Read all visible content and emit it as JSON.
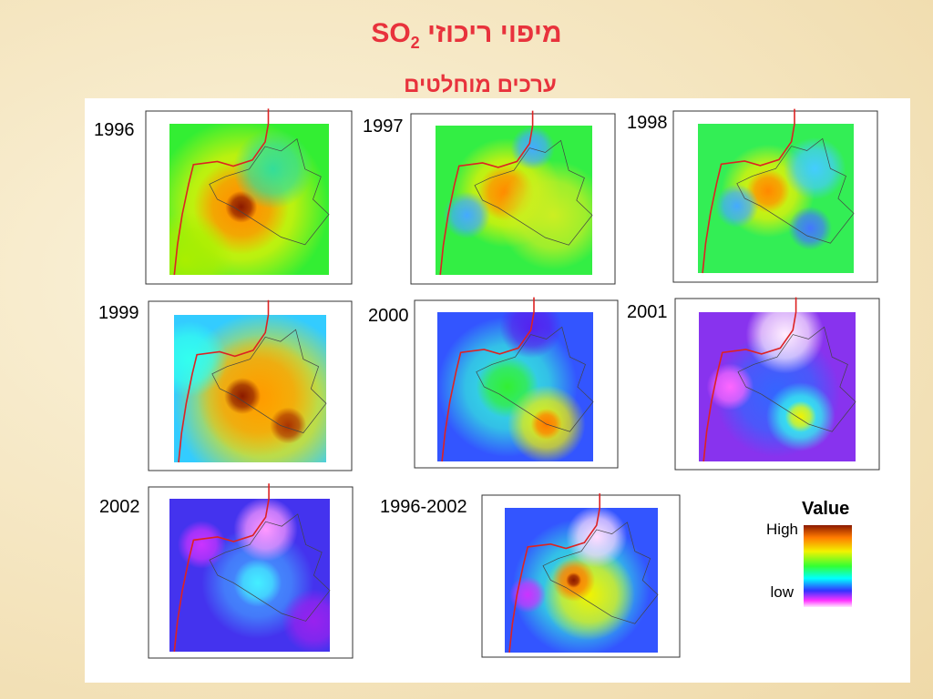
{
  "header": {
    "title": {
      "text": "מיפוי ריכוזי",
      "formula": "SO",
      "subscript": "2"
    },
    "subtitle": "ערכים מוחלטים"
  },
  "panels": [
    {
      "label": "1996"
    },
    {
      "label": "1997"
    },
    {
      "label": "1998"
    },
    {
      "label": "1999"
    },
    {
      "label": "2000"
    },
    {
      "label": "2001"
    },
    {
      "label": "2002"
    },
    {
      "label": "1996-2002"
    }
  ],
  "legend": {
    "title": "Value",
    "high": "High",
    "low": "low"
  }
}
